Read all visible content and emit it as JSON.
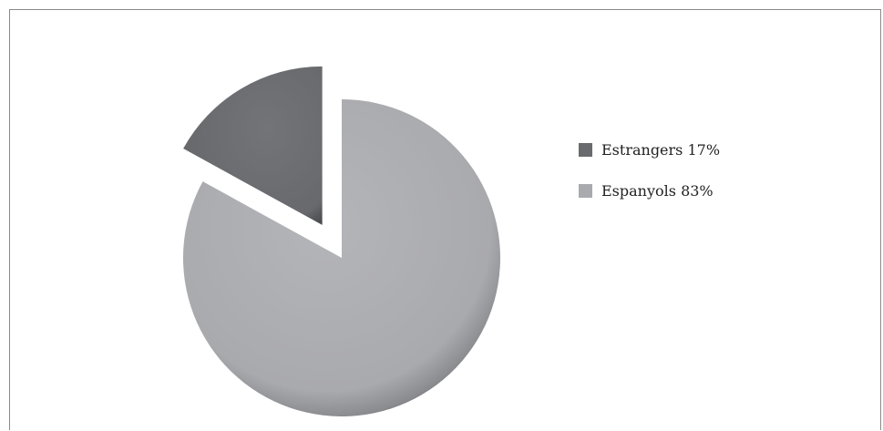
{
  "colors": {
    "estrangers": "#6a6b6f",
    "espanyols": "#a9aaae"
  },
  "chart_data": {
    "type": "pie",
    "exploded": true,
    "legend_position": "right",
    "slices": [
      {
        "label": "Estrangers 17%",
        "value": 17,
        "color": "#6a6b6f"
      },
      {
        "label": "Espanyols 83%",
        "value": 83,
        "color": "#a9aaae"
      }
    ]
  }
}
